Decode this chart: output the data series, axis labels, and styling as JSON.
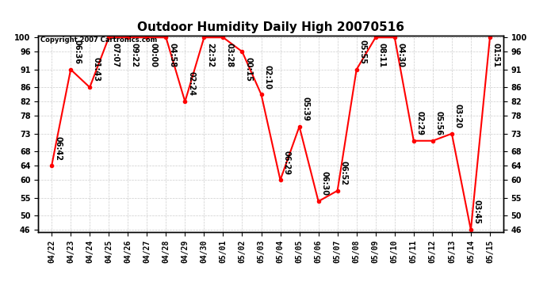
{
  "title": "Outdoor Humidity Daily High 20070516",
  "copyright": "Copyright 2007 Cartronics.com",
  "x_labels": [
    "04/22",
    "04/23",
    "04/24",
    "04/25",
    "04/26",
    "04/27",
    "04/28",
    "04/29",
    "04/30",
    "05/01",
    "05/02",
    "05/03",
    "05/04",
    "05/05",
    "05/06",
    "05/07",
    "05/08",
    "05/09",
    "05/10",
    "05/11",
    "05/12",
    "05/13",
    "05/14",
    "05/15"
  ],
  "y_values": [
    64,
    91,
    86,
    100,
    100,
    100,
    100,
    82,
    100,
    100,
    96,
    84,
    60,
    75,
    54,
    57,
    91,
    100,
    100,
    71,
    71,
    73,
    46,
    100
  ],
  "time_labels": [
    "06:42",
    "06:36",
    "01:43",
    "07:07",
    "09:22",
    "00:00",
    "04:58",
    "02:24",
    "22:32",
    "03:28",
    "00:15",
    "02:10",
    "06:29",
    "05:39",
    "06:30",
    "06:52",
    "05:55",
    "08:11",
    "04:30",
    "02:29",
    "05:56",
    "03:20",
    "03:45",
    "01:51"
  ],
  "line_color": "#ff0000",
  "marker_color": "#ff0000",
  "bg_color": "#ffffff",
  "grid_color": "#cccccc",
  "ylim_min": 46,
  "ylim_max": 100,
  "yticks": [
    46,
    50,
    55,
    60,
    64,
    68,
    73,
    78,
    82,
    86,
    91,
    96,
    100
  ],
  "title_fontsize": 11,
  "tick_fontsize": 7,
  "annot_fontsize": 7
}
